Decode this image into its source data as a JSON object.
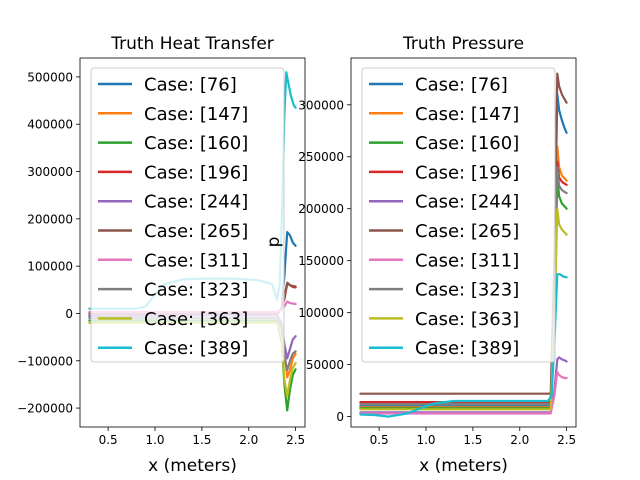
{
  "chart_data": [
    {
      "type": "line",
      "title": "Truth Heat Transfer",
      "xlabel": "x (meters)",
      "ylabel": "",
      "xlim": [
        0.2,
        2.6
      ],
      "ylim": [
        -240000,
        540000
      ],
      "xticks": [
        0.5,
        1.0,
        1.5,
        2.0,
        2.5
      ],
      "xtick_labels": [
        "0.5",
        "1.0",
        "1.5",
        "2.0",
        "2.5"
      ],
      "yticks": [
        -200000,
        -100000,
        0,
        100000,
        200000,
        300000,
        400000,
        500000
      ],
      "ytick_labels": [
        "−200000",
        "−100000",
        "0",
        "100000",
        "200000",
        "300000",
        "400000",
        "500000"
      ],
      "legend": "upper-left",
      "series": [
        {
          "name": "Case: [76]",
          "color": "#1f77b4",
          "x": [
            0.3,
            0.8,
            1.2,
            1.6,
            2.0,
            2.3,
            2.35,
            2.38,
            2.41,
            2.44,
            2.47,
            2.5
          ],
          "y": [
            -6000,
            -5000,
            -4000,
            -3000,
            -2000,
            -2000,
            10000,
            80000,
            172000,
            165000,
            150000,
            143000
          ]
        },
        {
          "name": "Case: [147]",
          "color": "#ff7f0e",
          "x": [
            0.3,
            1.0,
            2.0,
            2.3,
            2.35,
            2.38,
            2.41,
            2.44,
            2.47,
            2.5
          ],
          "y": [
            -3000,
            -3000,
            -3000,
            -3000,
            -20000,
            -80000,
            -135000,
            -120000,
            -95000,
            -85000
          ]
        },
        {
          "name": "Case: [160]",
          "color": "#2ca02c",
          "x": [
            0.3,
            1.0,
            2.0,
            2.3,
            2.35,
            2.38,
            2.41,
            2.44,
            2.47,
            2.5
          ],
          "y": [
            -15000,
            -15000,
            -15000,
            -15000,
            -60000,
            -150000,
            -205000,
            -160000,
            -130000,
            -118000
          ]
        },
        {
          "name": "Case: [196]",
          "color": "#d62728",
          "x": [
            0.3,
            1.0,
            2.0,
            2.3,
            2.35,
            2.38,
            2.41,
            2.44,
            2.47,
            2.5
          ],
          "y": [
            2000,
            2000,
            2000,
            2000,
            10000,
            30000,
            63000,
            60000,
            56000,
            55000
          ]
        },
        {
          "name": "Case: [244]",
          "color": "#9467bd",
          "x": [
            0.3,
            1.0,
            2.0,
            2.3,
            2.35,
            2.38,
            2.41,
            2.44,
            2.47,
            2.5
          ],
          "y": [
            -4000,
            -4000,
            -4000,
            -4000,
            -20000,
            -65000,
            -95000,
            -75000,
            -55000,
            -48000
          ]
        },
        {
          "name": "Case: [265]",
          "color": "#8c564b",
          "x": [
            0.3,
            1.0,
            2.0,
            2.3,
            2.35,
            2.38,
            2.41,
            2.44,
            2.47,
            2.5
          ],
          "y": [
            1000,
            1000,
            1000,
            1000,
            10000,
            35000,
            65000,
            60000,
            58000,
            57000
          ]
        },
        {
          "name": "Case: [311]",
          "color": "#e377c2",
          "x": [
            0.3,
            1.0,
            2.0,
            2.3,
            2.35,
            2.38,
            2.41,
            2.44,
            2.47,
            2.5
          ],
          "y": [
            3000,
            3000,
            3000,
            3000,
            8000,
            15000,
            25000,
            22000,
            21000,
            20000
          ]
        },
        {
          "name": "Case: [323]",
          "color": "#7f7f7f",
          "x": [
            0.3,
            1.0,
            2.0,
            2.3,
            2.35,
            2.38,
            2.41,
            2.44,
            2.47,
            2.5
          ],
          "y": [
            -10000,
            -10000,
            -10000,
            -10000,
            -30000,
            -90000,
            -120000,
            -100000,
            -85000,
            -80000
          ]
        },
        {
          "name": "Case: [363]",
          "color": "#bcbd22",
          "x": [
            0.3,
            1.0,
            2.0,
            2.3,
            2.35,
            2.38,
            2.41,
            2.44,
            2.47,
            2.5
          ],
          "y": [
            -20000,
            -20000,
            -20000,
            -20000,
            -50000,
            -140000,
            -175000,
            -140000,
            -115000,
            -105000
          ]
        },
        {
          "name": "Case: [389]",
          "color": "#17becf",
          "x": [
            0.3,
            0.6,
            0.8,
            0.9,
            1.0,
            1.1,
            1.3,
            1.6,
            1.9,
            2.1,
            2.25,
            2.3,
            2.33,
            2.36,
            2.38,
            2.4,
            2.42,
            2.45,
            2.48,
            2.5
          ],
          "y": [
            10000,
            10000,
            10000,
            15000,
            40000,
            62000,
            72000,
            74000,
            73000,
            70000,
            62000,
            30000,
            60000,
            250000,
            420000,
            510000,
            490000,
            460000,
            440000,
            435000
          ]
        }
      ]
    },
    {
      "type": "line",
      "title": "Truth Pressure",
      "xlabel": "x (meters)",
      "ylabel": "p",
      "xlim": [
        0.2,
        2.6
      ],
      "ylim": [
        -10000,
        345000
      ],
      "xticks": [
        0.5,
        1.0,
        1.5,
        2.0,
        2.5
      ],
      "xtick_labels": [
        "0.5",
        "1.0",
        "1.5",
        "2.0",
        "2.5"
      ],
      "yticks": [
        0,
        50000,
        100000,
        150000,
        200000,
        250000,
        300000
      ],
      "ytick_labels": [
        "0",
        "50000",
        "100000",
        "150000",
        "200000",
        "250000",
        "300000"
      ],
      "legend": "upper-left",
      "series": [
        {
          "name": "Case: [76]",
          "color": "#1f77b4",
          "x": [
            0.3,
            1.0,
            2.0,
            2.33,
            2.37,
            2.4,
            2.42,
            2.45,
            2.48,
            2.5
          ],
          "y": [
            10000,
            10000,
            10000,
            10000,
            150000,
            310000,
            295000,
            285000,
            277000,
            273000
          ]
        },
        {
          "name": "Case: [147]",
          "color": "#ff7f0e",
          "x": [
            0.3,
            1.0,
            2.0,
            2.33,
            2.37,
            2.4,
            2.42,
            2.45,
            2.48,
            2.5
          ],
          "y": [
            9000,
            9000,
            9000,
            9000,
            120000,
            260000,
            240000,
            232000,
            229000,
            227000
          ]
        },
        {
          "name": "Case: [160]",
          "color": "#2ca02c",
          "x": [
            0.3,
            1.0,
            2.0,
            2.33,
            2.37,
            2.4,
            2.42,
            2.45,
            2.48,
            2.5
          ],
          "y": [
            8000,
            8000,
            8000,
            8000,
            100000,
            230000,
            212000,
            205000,
            202000,
            200000
          ]
        },
        {
          "name": "Case: [196]",
          "color": "#d62728",
          "x": [
            0.3,
            1.0,
            2.0,
            2.33,
            2.37,
            2.4,
            2.42,
            2.45,
            2.48,
            2.5
          ],
          "y": [
            14000,
            14000,
            14000,
            14000,
            110000,
            245000,
            230000,
            226000,
            224000,
            223000
          ]
        },
        {
          "name": "Case: [244]",
          "color": "#9467bd",
          "x": [
            0.3,
            1.0,
            2.0,
            2.33,
            2.37,
            2.4,
            2.42,
            2.45,
            2.48,
            2.5
          ],
          "y": [
            4000,
            4000,
            4000,
            4000,
            25000,
            55000,
            57000,
            55000,
            54000,
            53000
          ]
        },
        {
          "name": "Case: [265]",
          "color": "#8c564b",
          "x": [
            0.3,
            1.0,
            2.0,
            2.33,
            2.37,
            2.4,
            2.42,
            2.45,
            2.48,
            2.5
          ],
          "y": [
            22000,
            22000,
            22000,
            22000,
            150000,
            330000,
            318000,
            310000,
            305000,
            302000
          ]
        },
        {
          "name": "Case: [311]",
          "color": "#e377c2",
          "x": [
            0.3,
            1.0,
            2.0,
            2.33,
            2.37,
            2.4,
            2.42,
            2.45,
            2.48,
            2.5
          ],
          "y": [
            3000,
            3000,
            3000,
            3000,
            20000,
            43000,
            40000,
            38000,
            37000,
            37000
          ]
        },
        {
          "name": "Case: [323]",
          "color": "#7f7f7f",
          "x": [
            0.3,
            1.0,
            2.0,
            2.33,
            2.37,
            2.4,
            2.42,
            2.45,
            2.48,
            2.5
          ],
          "y": [
            12000,
            12000,
            12000,
            12000,
            110000,
            240000,
            222000,
            218000,
            216000,
            215000
          ]
        },
        {
          "name": "Case: [363]",
          "color": "#bcbd22",
          "x": [
            0.3,
            1.0,
            2.0,
            2.33,
            2.37,
            2.4,
            2.42,
            2.45,
            2.48,
            2.5
          ],
          "y": [
            7000,
            7000,
            7000,
            7000,
            90000,
            200000,
            185000,
            180000,
            177000,
            175000
          ]
        },
        {
          "name": "Case: [389]",
          "color": "#17becf",
          "x": [
            0.3,
            0.45,
            0.6,
            0.8,
            1.0,
            1.1,
            1.3,
            1.6,
            1.9,
            2.2,
            2.3,
            2.34,
            2.37,
            2.4,
            2.43,
            2.46,
            2.5
          ],
          "y": [
            2000,
            1500,
            0,
            3000,
            10000,
            13000,
            15000,
            15000,
            15000,
            15000,
            15000,
            20000,
            70000,
            137000,
            137000,
            135000,
            134000
          ]
        }
      ]
    }
  ]
}
